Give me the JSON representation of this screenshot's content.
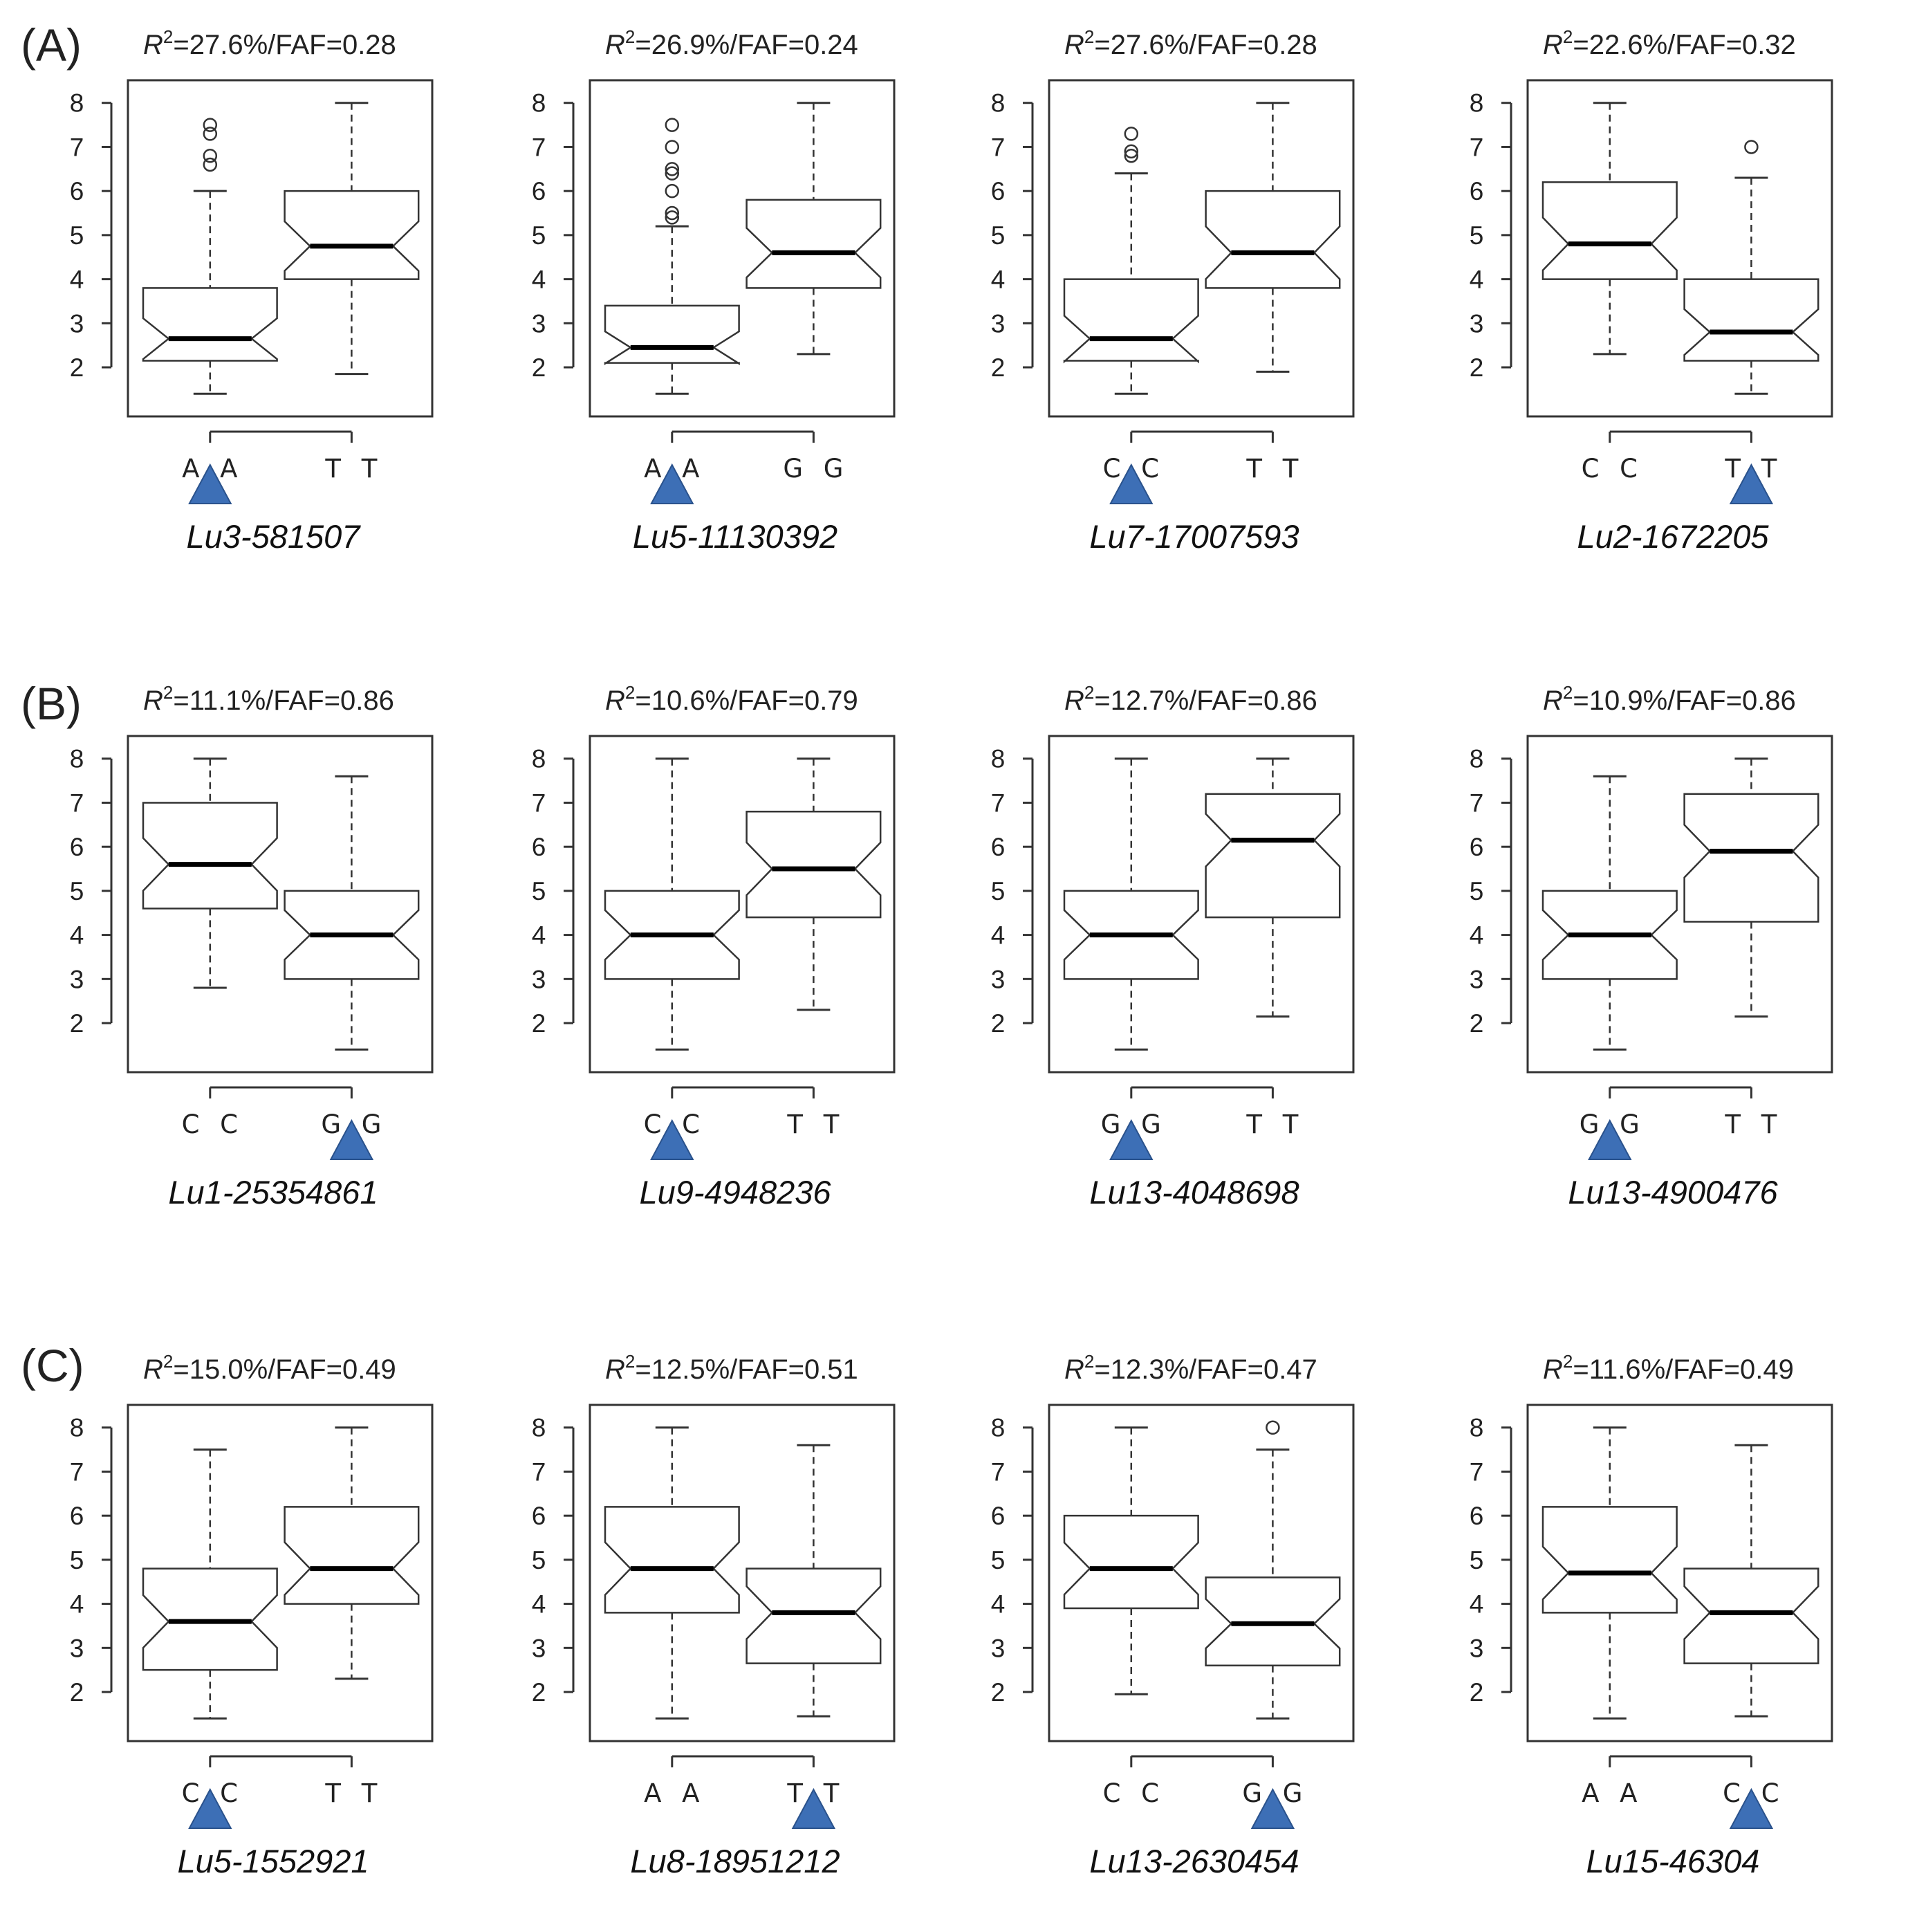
{
  "chart_data": {
    "type": "boxplot",
    "subtype": "notched",
    "ylim": [
      1.2,
      8.2
    ],
    "yticks": [
      2,
      3,
      4,
      5,
      6,
      7,
      8
    ],
    "colors": {
      "triangle": "#3d6fb6",
      "line": "#333333"
    },
    "rows": [
      {
        "label": "(A)",
        "plots": [
          {
            "r2": "27.6%",
            "faf": "0.28",
            "marker": "Lu3-581507",
            "favorable": 0,
            "groups": [
              {
                "name": "AA",
                "min": 1.4,
                "q1": 2.15,
                "median": 2.65,
                "q3": 3.8,
                "max": 6.0,
                "outliers": [
                  6.6,
                  6.8,
                  7.3,
                  7.5
                ]
              },
              {
                "name": "TT",
                "min": 1.85,
                "q1": 4.0,
                "median": 4.75,
                "q3": 6.0,
                "max": 8.0,
                "outliers": []
              }
            ]
          },
          {
            "r2": "26.9%",
            "faf": "0.24",
            "marker": "Lu5-11130392",
            "favorable": 0,
            "groups": [
              {
                "name": "AA",
                "min": 1.4,
                "q1": 2.1,
                "median": 2.45,
                "q3": 3.4,
                "max": 5.2,
                "outliers": [
                  5.4,
                  5.5,
                  6.0,
                  6.4,
                  6.5,
                  7.0,
                  7.5
                ]
              },
              {
                "name": "GG",
                "min": 2.3,
                "q1": 3.8,
                "median": 4.6,
                "q3": 5.8,
                "max": 8.0,
                "outliers": []
              }
            ]
          },
          {
            "r2": "27.6%",
            "faf": "0.28",
            "marker": "Lu7-17007593",
            "favorable": 0,
            "groups": [
              {
                "name": "CC",
                "min": 1.4,
                "q1": 2.15,
                "median": 2.65,
                "q3": 4.0,
                "max": 6.4,
                "outliers": [
                  6.8,
                  6.9,
                  7.3
                ]
              },
              {
                "name": "TT",
                "min": 1.9,
                "q1": 3.8,
                "median": 4.6,
                "q3": 6.0,
                "max": 8.0,
                "outliers": []
              }
            ]
          },
          {
            "r2": "22.6%",
            "faf": "0.32",
            "marker": "Lu2-1672205",
            "favorable": 1,
            "groups": [
              {
                "name": "CC",
                "min": 2.3,
                "q1": 4.0,
                "median": 4.8,
                "q3": 6.2,
                "max": 8.0,
                "outliers": []
              },
              {
                "name": "TT",
                "min": 1.4,
                "q1": 2.15,
                "median": 2.8,
                "q3": 4.0,
                "max": 6.3,
                "outliers": [
                  7.0
                ]
              }
            ]
          }
        ]
      },
      {
        "label": "(B)",
        "plots": [
          {
            "r2": "11.1%",
            "faf": "0.86",
            "marker": "Lu1-25354861",
            "favorable": 1,
            "groups": [
              {
                "name": "CC",
                "min": 2.8,
                "q1": 4.6,
                "median": 5.6,
                "q3": 7.0,
                "max": 8.0,
                "outliers": []
              },
              {
                "name": "GG",
                "min": 1.4,
                "q1": 3.0,
                "median": 4.0,
                "q3": 5.0,
                "max": 7.6,
                "outliers": []
              }
            ]
          },
          {
            "r2": "10.6%",
            "faf": "0.79",
            "marker": "Lu9-4948236",
            "favorable": 0,
            "groups": [
              {
                "name": "CC",
                "min": 1.4,
                "q1": 3.0,
                "median": 4.0,
                "q3": 5.0,
                "max": 8.0,
                "outliers": []
              },
              {
                "name": "TT",
                "min": 2.3,
                "q1": 4.4,
                "median": 5.5,
                "q3": 6.8,
                "max": 8.0,
                "outliers": []
              }
            ]
          },
          {
            "r2": "12.7%",
            "faf": "0.86",
            "marker": "Lu13-4048698",
            "favorable": 0,
            "groups": [
              {
                "name": "GG",
                "min": 1.4,
                "q1": 3.0,
                "median": 4.0,
                "q3": 5.0,
                "max": 8.0,
                "outliers": []
              },
              {
                "name": "TT",
                "min": 2.15,
                "q1": 4.4,
                "median": 6.15,
                "q3": 7.2,
                "max": 8.0,
                "outliers": []
              }
            ]
          },
          {
            "r2": "10.9%",
            "faf": "0.86",
            "marker": "Lu13-4900476",
            "favorable": 0,
            "groups": [
              {
                "name": "GG",
                "min": 1.4,
                "q1": 3.0,
                "median": 4.0,
                "q3": 5.0,
                "max": 7.6,
                "outliers": []
              },
              {
                "name": "TT",
                "min": 2.15,
                "q1": 4.3,
                "median": 5.9,
                "q3": 7.2,
                "max": 8.0,
                "outliers": []
              }
            ]
          }
        ]
      },
      {
        "label": "(C)",
        "plots": [
          {
            "r2": "15.0%",
            "faf": "0.49",
            "marker": "Lu5-1552921",
            "favorable": 0,
            "groups": [
              {
                "name": "CC",
                "min": 1.4,
                "q1": 2.5,
                "median": 3.6,
                "q3": 4.8,
                "max": 7.5,
                "outliers": []
              },
              {
                "name": "TT",
                "min": 2.3,
                "q1": 4.0,
                "median": 4.8,
                "q3": 6.2,
                "max": 8.0,
                "outliers": []
              }
            ]
          },
          {
            "r2": "12.5%",
            "faf": "0.51",
            "marker": "Lu8-18951212",
            "favorable": 1,
            "groups": [
              {
                "name": "AA",
                "min": 1.4,
                "q1": 3.8,
                "median": 4.8,
                "q3": 6.2,
                "max": 8.0,
                "outliers": []
              },
              {
                "name": "TT",
                "min": 1.45,
                "q1": 2.65,
                "median": 3.8,
                "q3": 4.8,
                "max": 7.6,
                "outliers": []
              }
            ]
          },
          {
            "r2": "12.3%",
            "faf": "0.47",
            "marker": "Lu13-2630454",
            "favorable": 1,
            "groups": [
              {
                "name": "CC",
                "min": 1.95,
                "q1": 3.9,
                "median": 4.8,
                "q3": 6.0,
                "max": 8.0,
                "outliers": []
              },
              {
                "name": "GG",
                "min": 1.4,
                "q1": 2.6,
                "median": 3.55,
                "q3": 4.6,
                "max": 7.5,
                "outliers": [
                  8.0
                ]
              }
            ]
          },
          {
            "r2": "11.6%",
            "faf": "0.49",
            "marker": "Lu15-46304",
            "favorable": 1,
            "groups": [
              {
                "name": "AA",
                "min": 1.4,
                "q1": 3.8,
                "median": 4.7,
                "q3": 6.2,
                "max": 8.0,
                "outliers": []
              },
              {
                "name": "CC",
                "min": 1.45,
                "q1": 2.65,
                "median": 3.8,
                "q3": 4.8,
                "max": 7.6,
                "outliers": []
              }
            ]
          }
        ]
      }
    ]
  }
}
